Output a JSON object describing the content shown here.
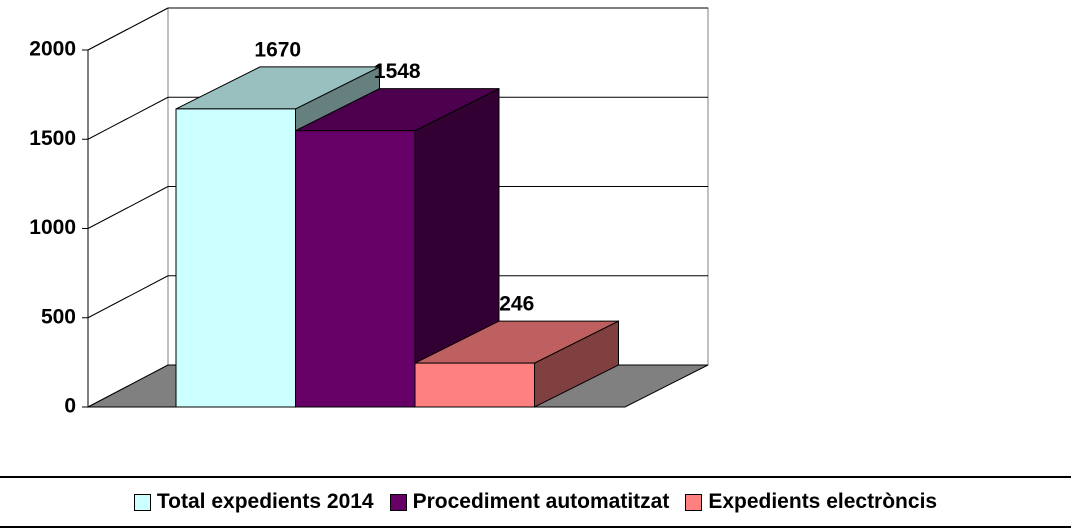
{
  "chart_data": {
    "type": "bar",
    "categories": [
      null
    ],
    "series": [
      {
        "name": "Total expedients 2014",
        "color": "#ccffff",
        "values": [
          1670
        ]
      },
      {
        "name": "Procediment automatitzat",
        "color": "#660066",
        "values": [
          1548
        ]
      },
      {
        "name": "Expedients electròncis",
        "color": "#ff8080",
        "values": [
          246
        ]
      }
    ],
    "ylim": [
      0,
      2000
    ],
    "yticks": [
      0,
      500,
      1000,
      1500,
      2000
    ],
    "grid": true,
    "legend": "bottom"
  }
}
